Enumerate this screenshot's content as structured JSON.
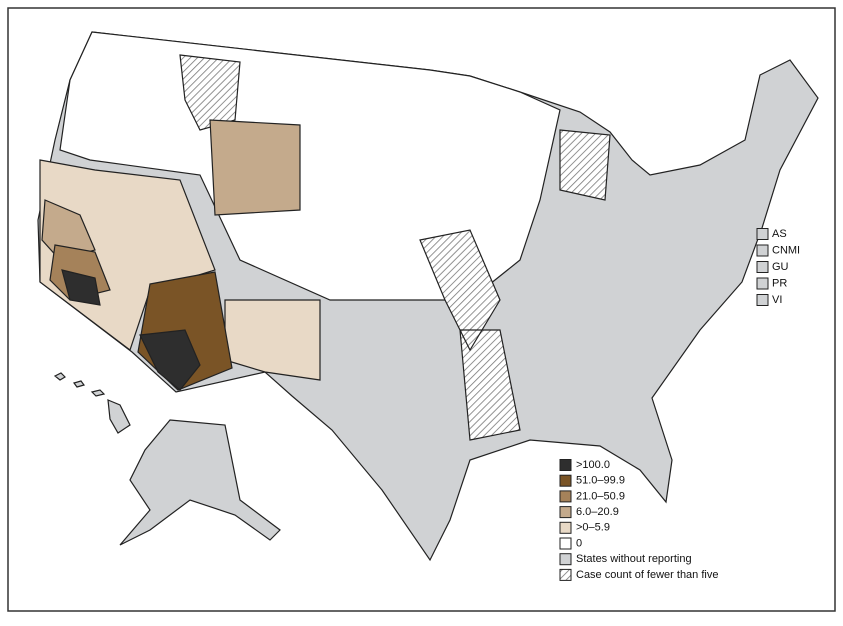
{
  "legend": {
    "items": [
      {
        "label": ">100.0",
        "color": "#2e2e2e"
      },
      {
        "label": "51.0–99.9",
        "color": "#7a5426"
      },
      {
        "label": "21.0–50.9",
        "color": "#a5825a"
      },
      {
        "label": "6.0–20.9",
        "color": "#c4aa8c"
      },
      {
        "label": ">0–5.9",
        "color": "#e8d9c6"
      },
      {
        "label": "0",
        "color": "#ffffff"
      },
      {
        "label": "States without reporting",
        "color": "#d0d2d4"
      },
      {
        "label": "Case count of fewer than five",
        "color": "#ffffff",
        "hatched": true
      }
    ]
  },
  "territories": [
    "AS",
    "CNMI",
    "GU",
    "PR",
    "VI"
  ],
  "territory_color": "#d0d2d4"
}
